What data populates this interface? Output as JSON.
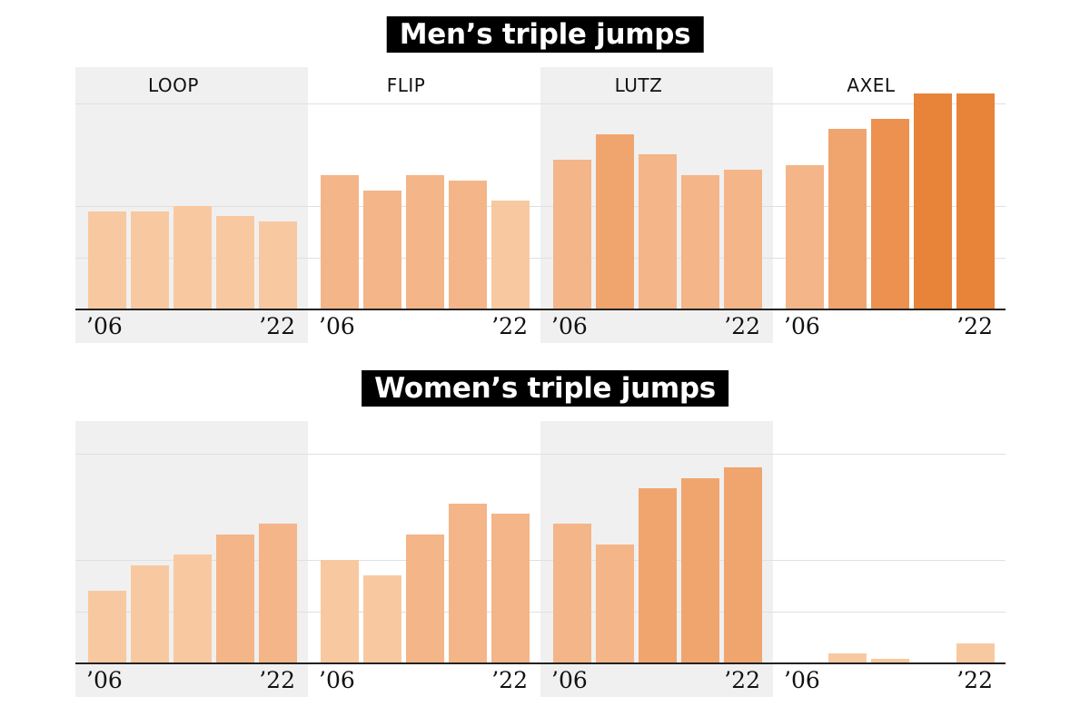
{
  "sections": {
    "men": {
      "title": "Men’s triple jumps"
    },
    "women": {
      "title": "Women’s triple jumps"
    }
  },
  "axis": {
    "start_label": "’06",
    "end_label": "’22"
  },
  "colors": [
    "#f8c9a0",
    "#f4b588",
    "#f0a56f",
    "#ec9150",
    "#e8833a"
  ],
  "chart_data": [
    {
      "type": "bar",
      "group": "men",
      "title": "LOOP",
      "x": [
        "2006",
        "2010",
        "2014",
        "2018",
        "2022"
      ],
      "values": [
        38,
        38,
        40,
        36,
        34
      ],
      "ylim": [
        0,
        80
      ],
      "color_level": [
        0,
        0,
        0,
        0,
        0
      ]
    },
    {
      "type": "bar",
      "group": "men",
      "title": "FLIP",
      "x": [
        "2006",
        "2010",
        "2014",
        "2018",
        "2022"
      ],
      "values": [
        52,
        46,
        52,
        50,
        42
      ],
      "ylim": [
        0,
        80
      ],
      "color_level": [
        1,
        1,
        1,
        1,
        0
      ]
    },
    {
      "type": "bar",
      "group": "men",
      "title": "LUTZ",
      "x": [
        "2006",
        "2010",
        "2014",
        "2018",
        "2022"
      ],
      "values": [
        58,
        68,
        60,
        52,
        54
      ],
      "ylim": [
        0,
        80
      ],
      "color_level": [
        1,
        2,
        1,
        1,
        1
      ]
    },
    {
      "type": "bar",
      "group": "men",
      "title": "AXEL",
      "x": [
        "2006",
        "2010",
        "2014",
        "2018",
        "2022"
      ],
      "values": [
        56,
        70,
        74,
        84,
        84
      ],
      "ylim": [
        0,
        80
      ],
      "color_level": [
        1,
        2,
        3,
        4,
        4
      ]
    },
    {
      "type": "bar",
      "group": "women",
      "title": "",
      "x": [
        "2006",
        "2010",
        "2014",
        "2018",
        "2022"
      ],
      "values": [
        28,
        38,
        42,
        50,
        54
      ],
      "ylim": [
        0,
        80
      ],
      "color_level": [
        0,
        0,
        0,
        1,
        1
      ]
    },
    {
      "type": "bar",
      "group": "women",
      "title": "",
      "x": [
        "2006",
        "2010",
        "2014",
        "2018",
        "2022"
      ],
      "values": [
        40,
        34,
        50,
        62,
        58
      ],
      "ylim": [
        0,
        80
      ],
      "color_level": [
        0,
        0,
        1,
        1,
        1
      ]
    },
    {
      "type": "bar",
      "group": "women",
      "title": "",
      "x": [
        "2006",
        "2010",
        "2014",
        "2018",
        "2022"
      ],
      "values": [
        54,
        46,
        68,
        72,
        76
      ],
      "ylim": [
        0,
        80
      ],
      "color_level": [
        1,
        1,
        2,
        2,
        2
      ]
    },
    {
      "type": "bar",
      "group": "women",
      "title": "",
      "x": [
        "2006",
        "2010",
        "2014",
        "2018",
        "2022"
      ],
      "values": [
        0,
        3.5,
        1.5,
        0,
        7.5
      ],
      "ylim": [
        0,
        80
      ],
      "color_level": [
        0,
        0,
        0,
        0,
        0
      ]
    }
  ]
}
